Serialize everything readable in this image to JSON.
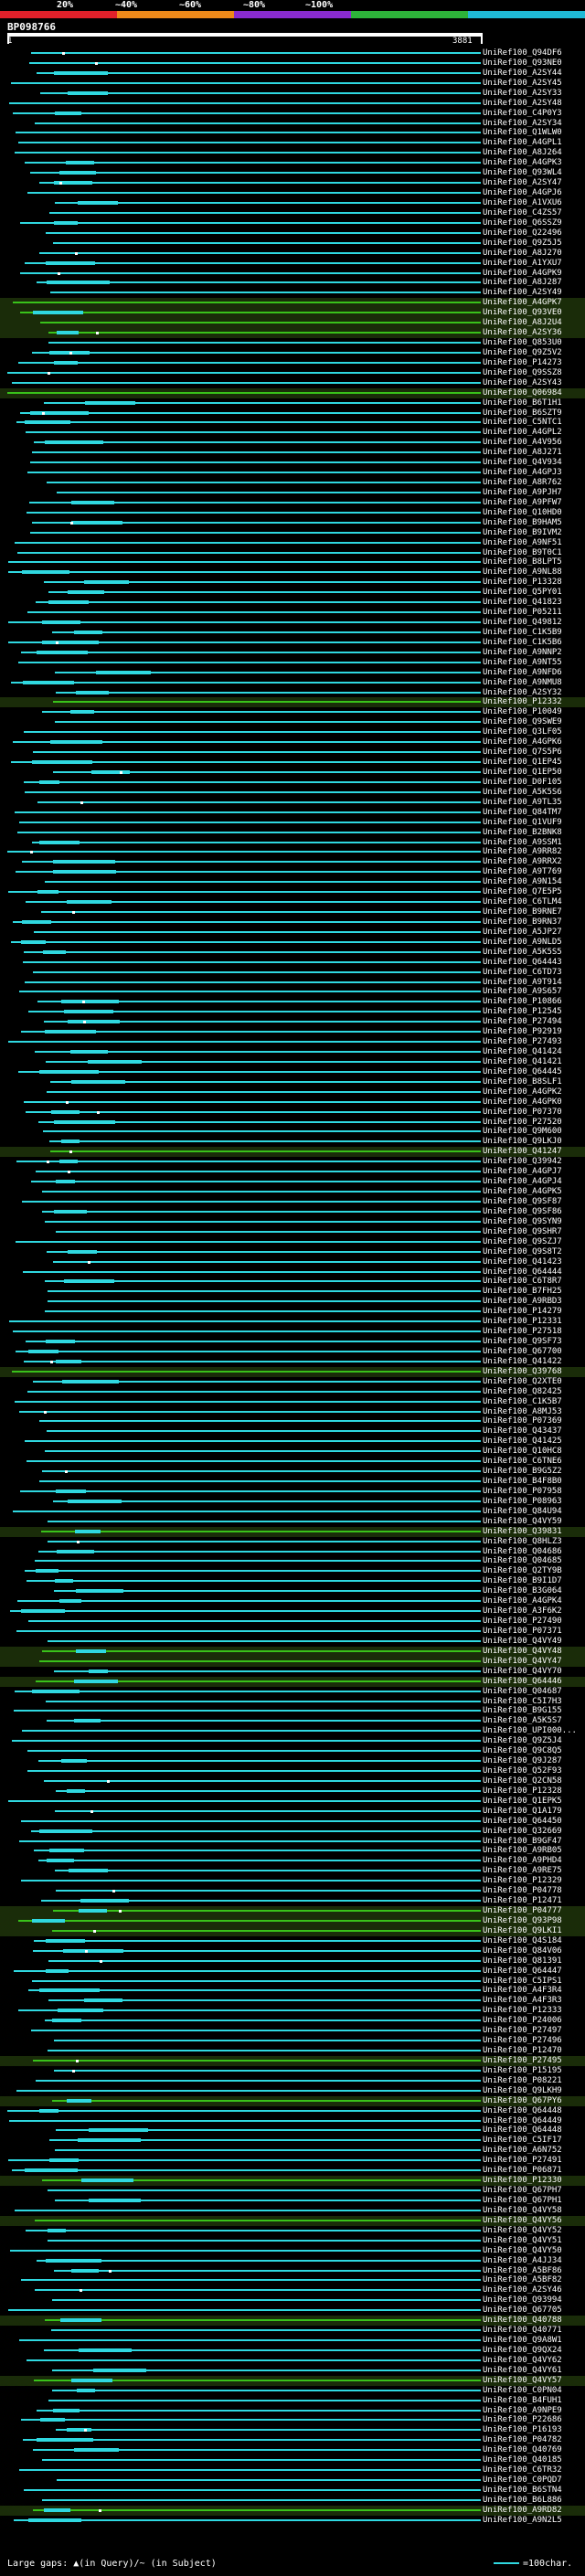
{
  "scale": {
    "ticks": [
      "20%",
      "~40%",
      "~60%",
      "~80%",
      "~100%"
    ],
    "colors": [
      "#e0202a",
      "#ee8a1a",
      "#8a2bd0",
      "#2db43a",
      "#1fbad6"
    ]
  },
  "query": {
    "id": "BP098766",
    "start": "1",
    "end": "3881"
  },
  "hit_colors": {
    "normal": "#2fd8e0",
    "full": "#39c21a",
    "gap": "#ffffff"
  },
  "hits": [
    "UniRef100_Q94DF6",
    "UniRef100_Q93NE0",
    "UniRef100_A2SY44",
    "UniRef100_A2SY45",
    "UniRef100_A2SY33",
    "UniRef100_A2SY48",
    "UniRef100_C4P0Y3",
    "UniRef100_A2SY34",
    "UniRef100_Q1WLW0",
    "UniRef100_A4GPL1",
    "UniRef100_A8J264",
    "UniRef100_A4GPK3",
    "UniRef100_Q93WL4",
    "UniRef100_A2SY47",
    "UniRef100_A4GPJ6",
    "UniRef100_A1VXU6",
    "UniRef100_C4ZS57",
    "UniRef100_Q6SSZ9",
    "UniRef100_Q22496",
    "UniRef100_Q9Z5J5",
    "UniRef100_A8J270",
    "UniRef100_A1YXU7",
    "UniRef100_A4GPK9",
    "UniRef100_A8J287",
    "UniRef100_A2SY49",
    "UniRef100_A4GPK7",
    "UniRef100_Q93VE0",
    "UniRef100_A8J2U4",
    "UniRef100_A2SY36",
    "UniRef100_Q853U0",
    "UniRef100_Q9Z5V2",
    "UniRef100_P14273",
    "UniRef100_Q9SSZ8",
    "UniRef100_A2SY43",
    "UniRef100_Q06984",
    "UniRef100_B6T1H1",
    "UniRef100_B6SZT9",
    "UniRef100_C5NTC1",
    "UniRef100_A4GPL2",
    "UniRef100_A4V956",
    "UniRef100_A8J271",
    "UniRef100_Q4V934",
    "UniRef100_A4GPJ3",
    "UniRef100_A8R762",
    "UniRef100_A9PJH7",
    "UniRef100_A9PFW7",
    "UniRef100_Q10HD0",
    "UniRef100_B9HAM5",
    "UniRef100_B9IVM2",
    "UniRef100_A9NF51",
    "UniRef100_B9T0C1",
    "UniRef100_B8LPT5",
    "UniRef100_A9NL88",
    "UniRef100_P13328",
    "UniRef100_Q5PY01",
    "UniRef100_Q41823",
    "UniRef100_P05211",
    "UniRef100_Q49812",
    "UniRef100_C1K5B9",
    "UniRef100_C1K5B6",
    "UniRef100_A9NNP2",
    "UniRef100_A9NT55",
    "UniRef100_A9NFD6",
    "UniRef100_A9NMU8",
    "UniRef100_A2SY32",
    "UniRef100_P12332",
    "UniRef100_P10049",
    "UniRef100_Q9SWE9",
    "UniRef100_Q3LF05",
    "UniRef100_A4GPK6",
    "UniRef100_Q7S5P6",
    "UniRef100_Q1EP45",
    "UniRef100_Q1EP50",
    "UniRef100_D0F105",
    "UniRef100_A5K5S6",
    "UniRef100_A9TL35",
    "UniRef100_Q84TM7",
    "UniRef100_Q1VUF9",
    "UniRef100_B2BNK8",
    "UniRef100_A9SSM1",
    "UniRef100_A9RR82",
    "UniRef100_A9RRX2",
    "UniRef100_A9T769",
    "UniRef100_A9N154",
    "UniRef100_Q7E5P5",
    "UniRef100_C6TLM4",
    "UniRef100_B9RNE7",
    "UniRef100_B9RN37",
    "UniRef100_A5JP27",
    "UniRef100_A9NLD5",
    "UniRef100_A5K5S5",
    "UniRef100_Q64443",
    "UniRef100_C6TD73",
    "UniRef100_A9T914",
    "UniRef100_A9S657",
    "UniRef100_P10866",
    "UniRef100_P12545",
    "UniRef100_P27494",
    "UniRef100_P92919",
    "UniRef100_P27493",
    "UniRef100_Q41424",
    "UniRef100_Q41421",
    "UniRef100_Q64445",
    "UniRef100_B8SLF1",
    "UniRef100_A4GPK2",
    "UniRef100_A4GPK0",
    "UniRef100_P07370",
    "UniRef100_P27520",
    "UniRef100_Q9M600",
    "UniRef100_Q9LKJ0",
    "UniRef100_Q41247",
    "UniRef100_Q39942",
    "UniRef100_A4GPJ7",
    "UniRef100_A4GPJ4",
    "UniRef100_A4GPK5",
    "UniRef100_Q9SF87",
    "UniRef100_Q9SF86",
    "UniRef100_Q9SYN9",
    "UniRef100_Q9SHR7",
    "UniRef100_Q9SZJ7",
    "UniRef100_Q9S8T2",
    "UniRef100_Q41423",
    "UniRef100_Q64444",
    "UniRef100_C6T8R7",
    "UniRef100_B7FH25",
    "UniRef100_A9RBD3",
    "UniRef100_P14279",
    "UniRef100_P12331",
    "UniRef100_P27518",
    "UniRef100_Q9SF73",
    "UniRef100_Q67700",
    "UniRef100_Q41422",
    "UniRef100_Q39768",
    "UniRef100_Q2XTE0",
    "UniRef100_Q82425",
    "UniRef100_C1K5B7",
    "UniRef100_A8MJ53",
    "UniRef100_P07369",
    "UniRef100_Q43437",
    "UniRef100_Q41425",
    "UniRef100_Q10HC8",
    "UniRef100_C6TNE6",
    "UniRef100_B9G5Z2",
    "UniRef100_B4F8B0",
    "UniRef100_P07958",
    "UniRef100_P08963",
    "UniRef100_Q84U94",
    "UniRef100_Q4VY59",
    "UniRef100_Q39831",
    "UniRef100_Q8HLZ3",
    "UniRef100_Q04686",
    "UniRef100_Q04685",
    "UniRef100_Q2TY9B",
    "UniRef100_B9I1D7",
    "UniRef100_B3G064",
    "UniRef100_A4GPK4",
    "UniRef100_A3F6K2",
    "UniRef100_P27490",
    "UniRef100_P07371",
    "UniRef100_Q4VY49",
    "UniRef100_Q4VY48",
    "UniRef100_Q4VY47",
    "UniRef100_Q4VY70",
    "UniRef100_Q64446",
    "UniRef100_Q04687",
    "UniRef100_C5I7H3",
    "UniRef100_B9G155",
    "UniRef100_A5K5S7",
    "UniRef100_UPI000...",
    "UniRef100_Q9Z5J4",
    "UniRef100_Q9C8Q5",
    "UniRef100_Q9J287",
    "UniRef100_Q52F93",
    "UniRef100_Q2CN58",
    "UniRef100_P12328",
    "UniRef100_Q1EPK5",
    "UniRef100_Q1A179",
    "UniRef100_Q64450",
    "UniRef100_Q32669",
    "UniRef100_B9GF47",
    "UniRef100_A9RB05",
    "UniRef100_A9PHD4",
    "UniRef100_A9RE75",
    "UniRef100_P12329",
    "UniRef100_P04778",
    "UniRef100_P12471",
    "UniRef100_P04777",
    "UniRef100_Q93P98",
    "UniRef100_Q9LKI1",
    "UniRef100_Q4S184",
    "UniRef100_Q84V06",
    "UniRef100_Q81391",
    "UniRef100_Q64447",
    "UniRef100_C5IPS1",
    "UniRef100_A4F3R4",
    "UniRef100_A4F3R3",
    "UniRef100_P12333",
    "UniRef100_P24006",
    "UniRef100_P27497",
    "UniRef100_P27496",
    "UniRef100_P12470",
    "UniRef100_P27495",
    "UniRef100_P15195",
    "UniRef100_P08221",
    "UniRef100_Q9LKH9",
    "UniRef100_Q67PY6",
    "UniRef100_Q64448",
    "UniRef100_Q64449",
    "UniRef100_Q64448",
    "UniRef100_C5IF17",
    "UniRef100_A6N752",
    "UniRef100_P27491",
    "UniRef100_P06871",
    "UniRef100_P12330",
    "UniRef100_Q67PH7",
    "UniRef100_Q67PH1",
    "UniRef100_Q4VY58",
    "UniRef100_Q4VY56",
    "UniRef100_Q4VY52",
    "UniRef100_Q4VY51",
    "UniRef100_Q4VY50",
    "UniRef100_A4JJ34",
    "UniRef100_A5BF86",
    "UniRef100_A5BF82",
    "UniRef100_A2SY46",
    "UniRef100_Q93994",
    "UniRef100_Q67705",
    "UniRef100_Q40788",
    "UniRef100_Q40771",
    "UniRef100_Q9A8W1",
    "UniRef100_Q9QX24",
    "UniRef100_Q4VY62",
    "UniRef100_Q4VY61",
    "UniRef100_Q4VY57",
    "UniRef100_C0PN04",
    "UniRef100_B4FUH1",
    "UniRef100_A9NPE9",
    "UniRef100_P22686",
    "UniRef100_P16193",
    "UniRef100_P04782",
    "UniRef100_Q40769",
    "UniRef100_Q40185",
    "UniRef100_C6TR32",
    "UniRef100_C0PQD7",
    "UniRef100_B6STN4",
    "UniRef100_B6L886",
    "UniRef100_A9RD82",
    "UniRef100_A9N2L5"
  ],
  "legend": {
    "gaps_label": "Large gaps:",
    "gaps_in_query": "(in Query)",
    "gaps_in_subject": "/~ (in Subject)",
    "scale_label": "=100char."
  }
}
